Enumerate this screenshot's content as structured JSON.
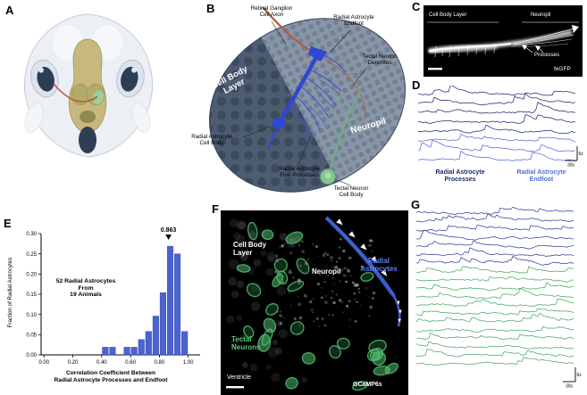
{
  "panels": {
    "a": {
      "letter": "A"
    },
    "b": {
      "letter": "B",
      "labels": {
        "rgc_axon": "Retinal Ganglion\nCell Axon",
        "endfoot": "Radial Astrocyte\nEndfoot",
        "tectal_dendrites": "Tectal Neuron\nDendrites",
        "cell_body_layer": "Cell Body\nLayer",
        "astro_cell_body": "Radial Astrocyte\nCell Body",
        "fine_processes": "Radial Astrocyte\nFine Processes",
        "neuropil": "Neuropil",
        "tectal_cell_body": "Tectal Neuron\nCell Body"
      }
    },
    "c": {
      "letter": "C",
      "labels": {
        "cell_body_layer": "Cell Body Layer",
        "neuropil": "Neuropil",
        "processes": "Processes",
        "reporter": "feGFP"
      }
    },
    "d": {
      "letter": "D",
      "trace_groups": [
        {
          "name": "radial-astrocyte-processes",
          "label": "Radial Astrocyte\nProcesses",
          "color": "#1e2a6d",
          "count": 5
        },
        {
          "name": "radial-astrocyte-endfoot",
          "label": "Radial Astrocyte\nEndfoot",
          "color": "#4e6fd9",
          "count": 3
        }
      ],
      "scale": {
        "vertical": "5z",
        "horizontal": "30s"
      }
    },
    "e": {
      "letter": "E"
    },
    "f": {
      "letter": "F",
      "labels": {
        "cell_body_layer": "Cell Body\nLayer",
        "neuropil": "Neuropil",
        "radial_astrocytes": "Radial\nAstrocytes",
        "tectal_neurons": "Tectal\nNeurons",
        "ventricle": "Ventricle",
        "reporter": "GCaMP6s"
      },
      "colors": {
        "radial_astrocytes": "#5b82f0",
        "tectal_neurons": "#58c878"
      }
    },
    "g": {
      "letter": "G",
      "trace_groups": [
        {
          "name": "radial-astrocytes",
          "color": "#2e3f9e",
          "count": 7
        },
        {
          "name": "tectal-neurons",
          "color": "#46a95e",
          "count": 12
        }
      ],
      "scale": {
        "vertical": "6z",
        "horizontal": "30s"
      }
    }
  },
  "chart_data": {
    "type": "bar",
    "title": "",
    "xlabel": "Correlation Coefficient Between\nRadial Astrocyte Processes and Endfoot",
    "ylabel": "Fraction of Radial Astrocytes",
    "bin_width": 0.05,
    "bin_centers": [
      0.425,
      0.475,
      0.525,
      0.575,
      0.625,
      0.675,
      0.725,
      0.775,
      0.825,
      0.875,
      0.925,
      0.975
    ],
    "values": [
      0.019,
      0.019,
      0,
      0.019,
      0.019,
      0.038,
      0.058,
      0.096,
      0.154,
      0.269,
      0.25,
      0.058
    ],
    "xlim": [
      -0.02,
      1.07
    ],
    "ylim": [
      0,
      0.3
    ],
    "xticks": [
      0,
      0.2,
      0.4,
      0.6,
      0.8,
      1.0
    ],
    "yticks": [
      0,
      0.05,
      0.1,
      0.15,
      0.2,
      0.25,
      0.3
    ],
    "grid": false,
    "legend": null,
    "bar_color": "#4a63cf",
    "annotation": {
      "label": "0.863",
      "x": 0.863
    },
    "note": "52 Radial Astrocytes\nFrom\n19 Animals"
  }
}
